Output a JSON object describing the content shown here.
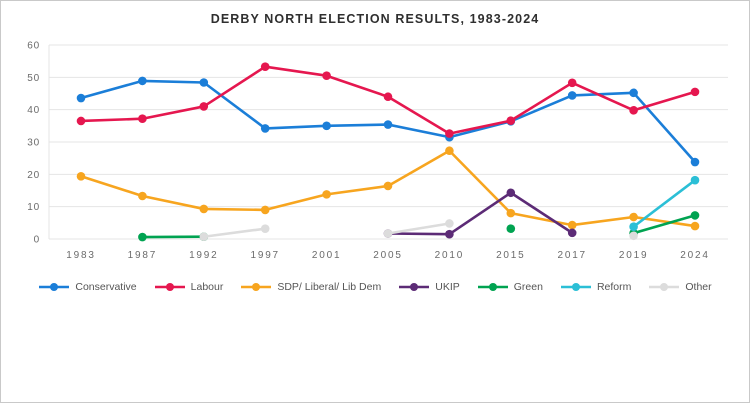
{
  "window": {
    "background": "#ffffff",
    "border_color": "#c9c9c9"
  },
  "chart_data": {
    "type": "line",
    "title": "DERBY NORTH ELECTION RESULTS, 1983-2024",
    "xlabel": "",
    "ylabel": "",
    "ylim": [
      0,
      60
    ],
    "yticks": [
      0,
      10,
      20,
      30,
      40,
      50,
      60
    ],
    "grid": true,
    "legend_position": "bottom",
    "categories": [
      "1983",
      "1987",
      "1992",
      "1997",
      "2001",
      "2005",
      "2010",
      "2015",
      "2017",
      "2019",
      "2024"
    ],
    "series": [
      {
        "name": "Conservative",
        "color": "#1b7ed8",
        "values": [
          43.6,
          48.9,
          48.4,
          34.2,
          35.0,
          35.4,
          31.5,
          36.4,
          44.4,
          45.2,
          23.8
        ]
      },
      {
        "name": "Labour",
        "color": "#e5174f",
        "values": [
          36.5,
          37.2,
          41.0,
          53.3,
          50.5,
          44.0,
          32.6,
          36.6,
          48.3,
          39.8,
          45.5
        ]
      },
      {
        "name": "SDP/ Liberal/ Lib Dem",
        "color": "#f7a51f",
        "values": [
          19.4,
          13.3,
          9.3,
          9.0,
          13.8,
          16.4,
          27.3,
          8.0,
          4.3,
          6.8,
          4.0
        ]
      },
      {
        "name": "UKIP",
        "color": "#5c2b76",
        "values": [
          null,
          null,
          null,
          null,
          null,
          1.7,
          1.5,
          14.3,
          1.9,
          null,
          null
        ]
      },
      {
        "name": "Green",
        "color": "#00a351",
        "values": [
          null,
          0.6,
          0.7,
          null,
          null,
          null,
          null,
          3.2,
          null,
          1.8,
          7.3
        ]
      },
      {
        "name": "Reform",
        "color": "#2bbfd6",
        "values": [
          null,
          null,
          null,
          null,
          null,
          null,
          null,
          null,
          null,
          3.8,
          18.2
        ]
      },
      {
        "name": "Other",
        "color": "#dcdcdc",
        "values": [
          null,
          null,
          0.7,
          3.2,
          null,
          1.7,
          4.8,
          null,
          null,
          1.0,
          null
        ]
      }
    ],
    "style": {
      "gridline_color": "#e4e4e4",
      "tick_label_color": "#6b6b6b",
      "line_width": 2.6,
      "marker_radius": 4.3
    }
  }
}
